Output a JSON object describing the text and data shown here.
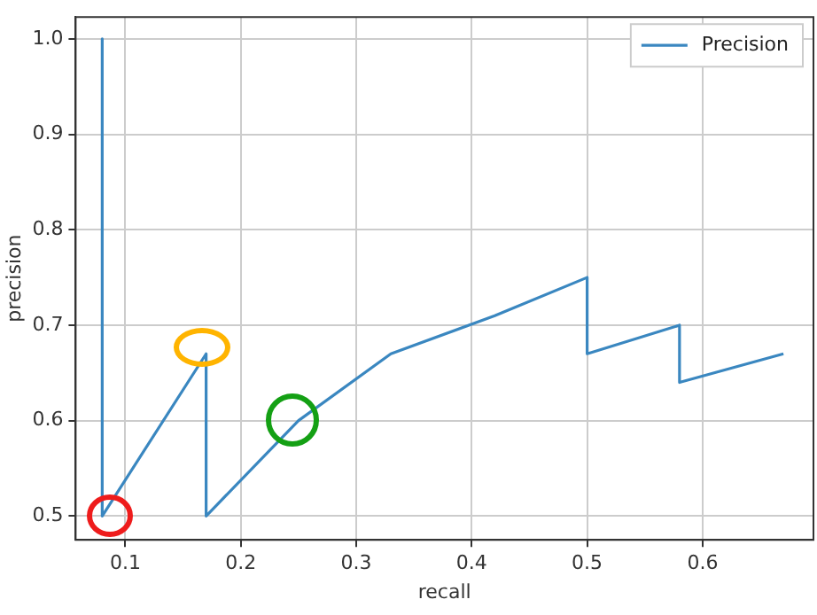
{
  "chart_data": {
    "type": "line",
    "xlabel": "recall",
    "ylabel": "precision",
    "x": [
      0.08,
      0.08,
      0.17,
      0.17,
      0.25,
      0.33,
      0.42,
      0.5,
      0.5,
      0.58,
      0.58,
      0.67
    ],
    "series": [
      {
        "name": "Precision",
        "color": "#3a87c0",
        "values": [
          1.0,
          0.5,
          0.67,
          0.5,
          0.6,
          0.67,
          0.71,
          0.75,
          0.67,
          0.7,
          0.64,
          0.67
        ]
      }
    ],
    "xlim": [
      0.057,
      0.696
    ],
    "ylim": [
      0.475,
      1.023
    ],
    "xticks": [
      0.1,
      0.2,
      0.3,
      0.4,
      0.5,
      0.6
    ],
    "yticks": [
      {
        "value": 0.5,
        "label": "0.5"
      },
      {
        "value": 0.6,
        "label": "0.6"
      },
      {
        "value": 0.7,
        "label": "0.7"
      },
      {
        "value": 0.8,
        "label": "0.8"
      },
      {
        "value": 0.9,
        "label": "0.9"
      },
      {
        "value": 1.0,
        "label": "1.0"
      }
    ],
    "grid": true,
    "legend": "top right",
    "marker": "none",
    "line_style": "solid"
  }
}
